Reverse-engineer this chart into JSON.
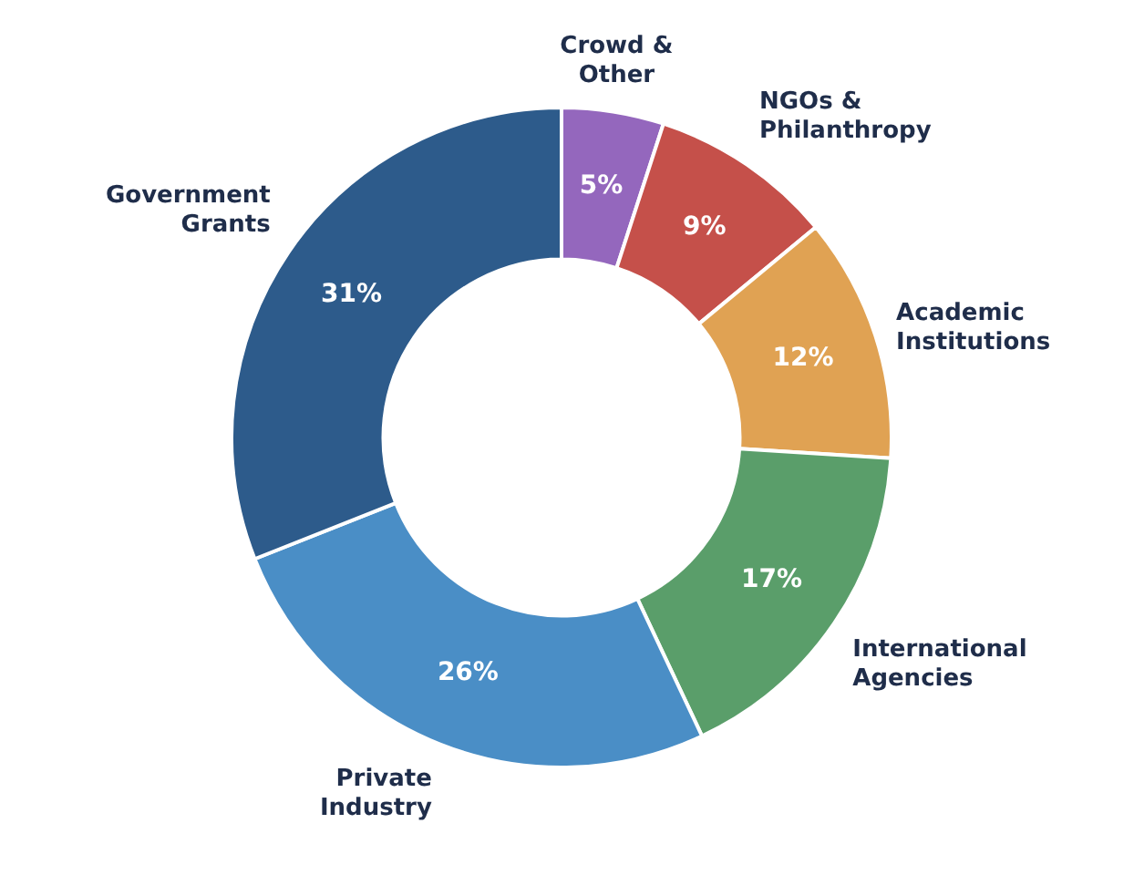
{
  "chart_data": {
    "type": "donut",
    "categories": [
      "Crowd & Other",
      "NGOs & Philanthropy",
      "Academic Institutions",
      "International Agencies",
      "Private Industry",
      "Government Grants"
    ],
    "values": [
      5,
      9,
      12,
      17,
      26,
      31
    ],
    "value_labels": [
      "5%",
      "9%",
      "12%",
      "17%",
      "26%",
      "31%"
    ],
    "colors": [
      "#9467bd",
      "#c5504a",
      "#e0a253",
      "#5a9e6a",
      "#4a8ec6",
      "#2d5b8b"
    ],
    "legend": false
  }
}
